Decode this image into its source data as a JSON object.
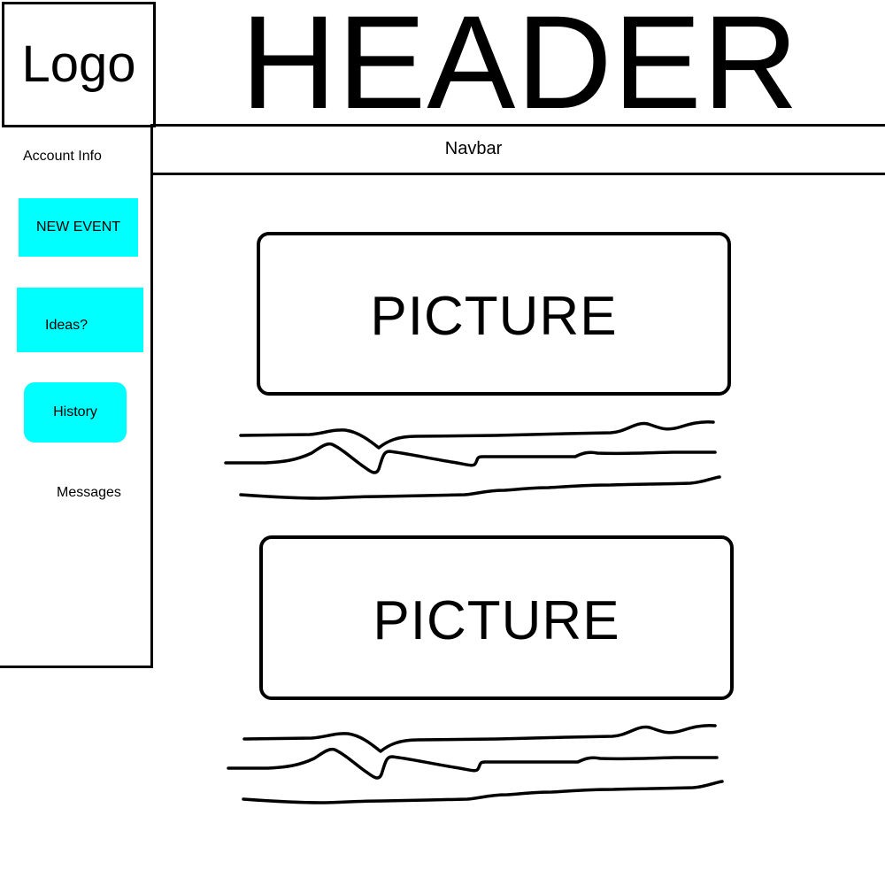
{
  "logo": {
    "label": "Logo"
  },
  "header": {
    "title": "HEADER"
  },
  "navbar": {
    "label": "Navbar"
  },
  "sidebar": {
    "account_info": "Account Info",
    "new_event": "NEW EVENT",
    "ideas": "Ideas?",
    "history": "History",
    "messages": "Messages"
  },
  "content": {
    "pictures": [
      {
        "label": "PICTURE"
      },
      {
        "label": "PICTURE"
      }
    ]
  },
  "colors": {
    "button_fill": "#00ffff",
    "line": "#000000"
  }
}
